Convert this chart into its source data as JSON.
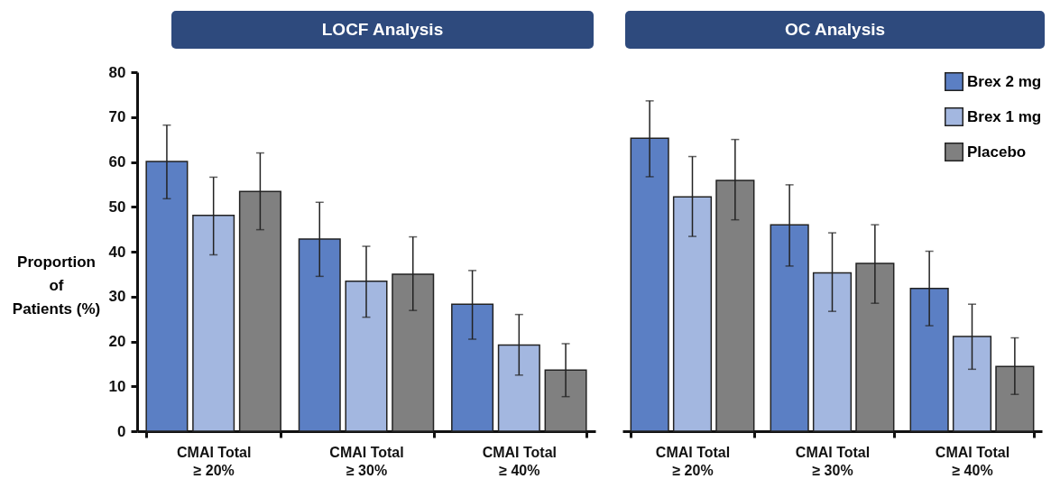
{
  "chart_data": [
    {
      "type": "bar",
      "title": "LOCF Analysis",
      "ylabel": "Proportion\nof\nPatients (%)",
      "categories": [
        "CMAI Total\n≥ 20%",
        "CMAI Total\n≥ 30%",
        "CMAI Total\n≥ 40%"
      ],
      "ylim": [
        0,
        80
      ],
      "yticks": [
        0,
        10,
        20,
        30,
        40,
        50,
        60,
        70,
        80
      ],
      "grid": false,
      "legend": false,
      "series": [
        {
          "color": "#5b7fc4",
          "values": [
            60.1,
            42.8,
            28.3
          ],
          "errors": [
            [
              51.8,
              68.2
            ],
            [
              34.5,
              51.0
            ],
            [
              20.5,
              35.8
            ]
          ]
        },
        {
          "color": "#a3b7e0",
          "values": [
            48.1,
            33.4,
            19.2
          ],
          "errors": [
            [
              39.3,
              56.6
            ],
            [
              25.4,
              41.2
            ],
            [
              12.5,
              26.0
            ]
          ]
        },
        {
          "color": "#808080",
          "values": [
            53.4,
            35.0,
            13.6
          ],
          "errors": [
            [
              44.9,
              62.0
            ],
            [
              26.9,
              43.3
            ],
            [
              7.7,
              19.5
            ]
          ]
        }
      ]
    },
    {
      "type": "bar",
      "title": "OC Analysis",
      "categories": [
        "CMAI Total\n≥ 20%",
        "CMAI Total\n≥ 30%",
        "CMAI Total\n≥ 40%"
      ],
      "ylim": [
        0,
        80
      ],
      "yticks": [
        0,
        10,
        20,
        30,
        40,
        50,
        60,
        70,
        80
      ],
      "tick_labels": "x",
      "grid": false,
      "legend": "top right",
      "series": [
        {
          "name": "Brex 2 mg",
          "color": "#5b7fc4",
          "values": [
            65.3,
            46.0,
            31.8
          ],
          "errors": [
            [
              56.7,
              73.6
            ],
            [
              36.8,
              54.9
            ],
            [
              23.5,
              40.1
            ]
          ]
        },
        {
          "name": "Brex 1 mg",
          "color": "#a3b7e0",
          "values": [
            52.2,
            35.3,
            21.1
          ],
          "errors": [
            [
              43.4,
              61.2
            ],
            [
              26.7,
              44.2
            ],
            [
              13.8,
              28.3
            ]
          ]
        },
        {
          "name": "Placebo",
          "color": "#808080",
          "values": [
            55.9,
            37.4,
            14.4
          ],
          "errors": [
            [
              47.1,
              65.0
            ],
            [
              28.5,
              46.0
            ],
            [
              8.2,
              20.8
            ]
          ]
        }
      ]
    }
  ]
}
